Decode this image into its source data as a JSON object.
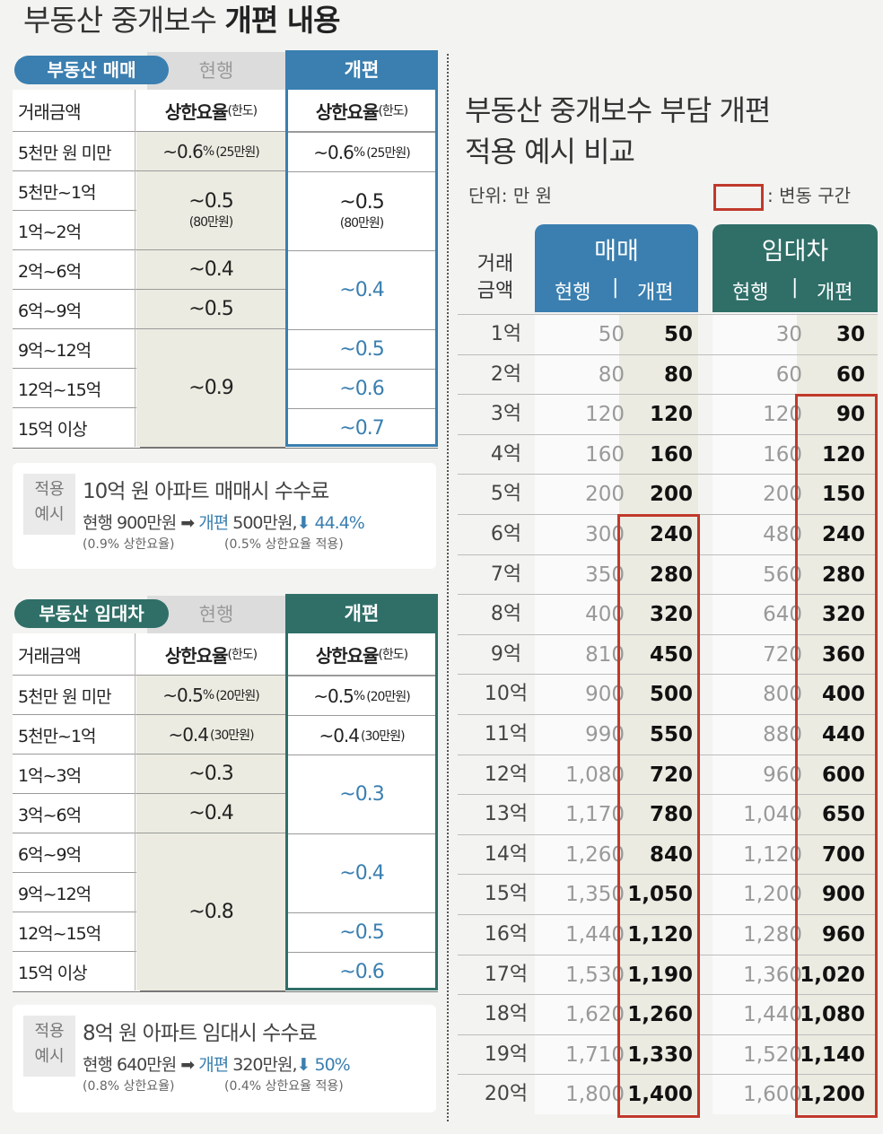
{
  "title": {
    "normal": "부동산 중개보수 ",
    "bold": "개편 내용"
  },
  "sale": {
    "pill": "부동산 매매",
    "current_label": "현행",
    "new_label": "개편",
    "header": {
      "amount": "거래금액",
      "rate": "상한요율",
      "limit": "(한도)"
    },
    "colors": {
      "pill": "#3a7fb0",
      "new": "#3a7fb0",
      "accent": "#3a7fb0"
    },
    "amounts": [
      "5천만 원 미만",
      "5천만~1억",
      "1억~2억",
      "2억~6억",
      "6억~9억",
      "9억~12억",
      "12억~15억",
      "15억 이상"
    ],
    "current": [
      {
        "rows": 1,
        "main": "~0.6",
        "pct": "%",
        "sub": "(25만원)",
        "inline": true
      },
      {
        "rows": 2,
        "main": "~0.5",
        "sub": "(80만원)"
      },
      {
        "rows": 1,
        "main": "~0.4"
      },
      {
        "rows": 1,
        "main": "~0.5"
      },
      {
        "rows": 3,
        "main": "~0.9"
      }
    ],
    "new": [
      {
        "rows": 1,
        "main": "~0.6",
        "pct": "%",
        "sub": "(25만원)",
        "inline": true
      },
      {
        "rows": 2,
        "main": "~0.5",
        "sub": "(80만원)"
      },
      {
        "rows": 2,
        "main": "~0.4",
        "accent": true
      },
      {
        "rows": 1,
        "main": "~0.5",
        "accent": true
      },
      {
        "rows": 1,
        "main": "~0.6",
        "accent": true
      },
      {
        "rows": 1,
        "main": "~0.7",
        "accent": true
      }
    ],
    "example": {
      "tag": [
        "적용",
        "예시"
      ],
      "title": "10억 원 아파트 매매시 수수료",
      "current": "현행 900만원",
      "arrow": "➡",
      "new_word": "개편",
      "new_value": " 500만원,",
      "down": "⬇ 44.4%",
      "sub_current": "(0.9% 상한요율)",
      "sub_new": "(0.5% 상한요율 적용)"
    }
  },
  "lease": {
    "pill": "부동산 임대차",
    "current_label": "현행",
    "new_label": "개편",
    "header": {
      "amount": "거래금액",
      "rate": "상한요율",
      "limit": "(한도)"
    },
    "colors": {
      "pill": "#2f6f68",
      "new": "#2f6f68",
      "accent": "#3a7fb0"
    },
    "amounts": [
      "5천만 원 미만",
      "5천만~1억",
      "1억~3억",
      "3억~6억",
      "6억~9억",
      "9억~12억",
      "12억~15억",
      "15억 이상"
    ],
    "current": [
      {
        "rows": 1,
        "main": "~0.5",
        "pct": "%",
        "sub": "(20만원)",
        "inline": true
      },
      {
        "rows": 1,
        "main": "~0.4",
        "sub": "(30만원)",
        "inline": true
      },
      {
        "rows": 1,
        "main": "~0.3"
      },
      {
        "rows": 1,
        "main": "~0.4"
      },
      {
        "rows": 4,
        "main": "~0.8"
      }
    ],
    "new": [
      {
        "rows": 1,
        "main": "~0.5",
        "pct": "%",
        "sub": "(20만원)",
        "inline": true
      },
      {
        "rows": 1,
        "main": "~0.4",
        "sub": "(30만원)",
        "inline": true
      },
      {
        "rows": 2,
        "main": "~0.3",
        "accent": true
      },
      {
        "rows": 2,
        "main": "~0.4",
        "accent": true
      },
      {
        "rows": 1,
        "main": "~0.5",
        "accent": true
      },
      {
        "rows": 1,
        "main": "~0.6",
        "accent": true
      }
    ],
    "example": {
      "tag": [
        "적용",
        "예시"
      ],
      "title": "8억 원 아파트 임대시 수수료",
      "current": "현행 640만원",
      "arrow": "➡",
      "new_word": "개편",
      "new_value": " 320만원,",
      "down": "⬇ 50%",
      "sub_current": "(0.8% 상한요율)",
      "sub_new": "(0.4% 상한요율 적용)"
    }
  },
  "comparison": {
    "title_lines": [
      "부동산 중개보수 부담 개편",
      "적용 예시 비교"
    ],
    "unit": "단위: 만 원",
    "legend": ": 변동 구간",
    "amount_label": [
      "거래",
      "금액"
    ],
    "sale_label": "매매",
    "lease_label": "임대차",
    "current_label": "현행",
    "divider": "|",
    "new_label": "개편",
    "colors": {
      "sale": "#3a7fb0",
      "lease": "#2f6f68",
      "changed": "#c0392b"
    },
    "rows": [
      {
        "k": "1억",
        "sc": "50",
        "sn": "50",
        "lc": "30",
        "ln": "30"
      },
      {
        "k": "2억",
        "sc": "80",
        "sn": "80",
        "lc": "60",
        "ln": "60"
      },
      {
        "k": "3억",
        "sc": "120",
        "sn": "120",
        "lc": "120",
        "ln": "90"
      },
      {
        "k": "4억",
        "sc": "160",
        "sn": "160",
        "lc": "160",
        "ln": "120"
      },
      {
        "k": "5억",
        "sc": "200",
        "sn": "200",
        "lc": "200",
        "ln": "150"
      },
      {
        "k": "6억",
        "sc": "300",
        "sn": "240",
        "lc": "480",
        "ln": "240"
      },
      {
        "k": "7억",
        "sc": "350",
        "sn": "280",
        "lc": "560",
        "ln": "280"
      },
      {
        "k": "8억",
        "sc": "400",
        "sn": "320",
        "lc": "640",
        "ln": "320"
      },
      {
        "k": "9억",
        "sc": "810",
        "sn": "450",
        "lc": "720",
        "ln": "360"
      },
      {
        "k": "10억",
        "sc": "900",
        "sn": "500",
        "lc": "800",
        "ln": "400"
      },
      {
        "k": "11억",
        "sc": "990",
        "sn": "550",
        "lc": "880",
        "ln": "440"
      },
      {
        "k": "12억",
        "sc": "1,080",
        "sn": "720",
        "lc": "960",
        "ln": "600"
      },
      {
        "k": "13억",
        "sc": "1,170",
        "sn": "780",
        "lc": "1,040",
        "ln": "650"
      },
      {
        "k": "14억",
        "sc": "1,260",
        "sn": "840",
        "lc": "1,120",
        "ln": "700"
      },
      {
        "k": "15억",
        "sc": "1,350",
        "sn": "1,050",
        "lc": "1,200",
        "ln": "900"
      },
      {
        "k": "16억",
        "sc": "1,440",
        "sn": "1,120",
        "lc": "1,280",
        "ln": "960"
      },
      {
        "k": "17억",
        "sc": "1,530",
        "sn": "1,190",
        "lc": "1,360",
        "ln": "1,020"
      },
      {
        "k": "18억",
        "sc": "1,620",
        "sn": "1,260",
        "lc": "1,440",
        "ln": "1,080"
      },
      {
        "k": "19억",
        "sc": "1,710",
        "sn": "1,330",
        "lc": "1,520",
        "ln": "1,140"
      },
      {
        "k": "20억",
        "sc": "1,800",
        "sn": "1,400",
        "lc": "1,600",
        "ln": "1,200"
      }
    ],
    "sale_changed_from": "6억",
    "lease_changed_from": "3억"
  }
}
